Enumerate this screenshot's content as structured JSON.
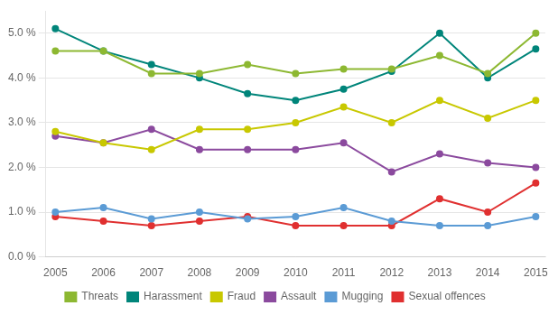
{
  "chart_data": {
    "type": "line",
    "x": [
      2005,
      2006,
      2007,
      2008,
      2009,
      2010,
      2011,
      2012,
      2013,
      2014,
      2015
    ],
    "series": [
      {
        "name": "Threats",
        "color": "#8db832",
        "marker": "circle",
        "values": [
          4.6,
          4.6,
          4.1,
          4.1,
          4.3,
          4.1,
          4.2,
          4.2,
          4.5,
          4.1,
          5.0
        ]
      },
      {
        "name": "Harassment",
        "color": "#00857a",
        "marker": "circle",
        "values": [
          5.1,
          4.6,
          4.3,
          4.0,
          3.65,
          3.5,
          3.75,
          4.15,
          5.0,
          4.0,
          4.65
        ]
      },
      {
        "name": "Fraud",
        "color": "#c8c800",
        "marker": "circle",
        "values": [
          2.8,
          2.55,
          2.4,
          2.85,
          2.85,
          3.0,
          3.35,
          3.0,
          3.5,
          3.1,
          3.5
        ]
      },
      {
        "name": "Assault",
        "color": "#8b4a9e",
        "marker": "circle",
        "values": [
          2.7,
          2.55,
          2.85,
          2.4,
          2.4,
          2.4,
          2.55,
          1.9,
          2.3,
          2.1,
          2.0
        ]
      },
      {
        "name": "Mugging",
        "color": "#5b9bd5",
        "marker": "circle",
        "values": [
          1.0,
          1.1,
          0.85,
          1.0,
          0.85,
          0.9,
          1.1,
          0.8,
          0.7,
          0.7,
          0.9
        ]
      },
      {
        "name": "Sexual offences",
        "color": "#e03030",
        "marker": "circle",
        "values": [
          0.9,
          0.8,
          0.7,
          0.8,
          0.9,
          0.7,
          0.7,
          0.7,
          1.3,
          1.0,
          1.65
        ]
      }
    ],
    "xlim": [
      2004.8,
      2015.2
    ],
    "xticks": [
      2005,
      2006,
      2007,
      2008,
      2009,
      2010,
      2011,
      2012,
      2013,
      2014,
      2015
    ],
    "ylim": [
      0.0,
      5.5
    ],
    "yticks": [
      {
        "value": 0.0,
        "label": "0.0 %"
      },
      {
        "value": 1.0,
        "label": "1.0 %"
      },
      {
        "value": 2.0,
        "label": "2.0 %"
      },
      {
        "value": 3.0,
        "label": "3.0 %"
      },
      {
        "value": 4.0,
        "label": "4.0 %"
      },
      {
        "value": 5.0,
        "label": "5.0 %"
      }
    ],
    "grid": "y",
    "legend": "bottom"
  }
}
